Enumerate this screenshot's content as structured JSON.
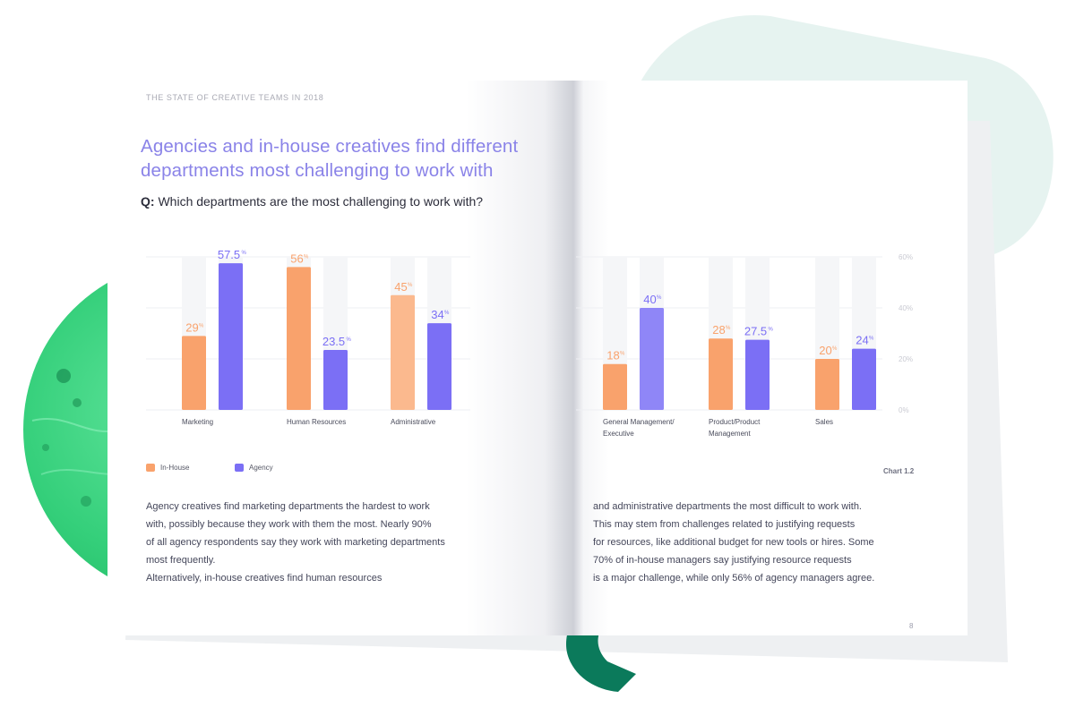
{
  "running_head": "THE STATE OF CREATIVE TEAMS IN 2018",
  "heading_line1": "Agencies and in-house creatives find different",
  "heading_line2": "departments most challenging to work with",
  "question": {
    "prefix": "Q:",
    "text": " Which departments are the most challenging to work with?"
  },
  "chart_data": {
    "type": "bar",
    "categories": [
      "Marketing",
      "Human Resources",
      "Administrative",
      "General Management/ Executive",
      "Product/Product Management",
      "Sales"
    ],
    "category_lines": [
      [
        "Marketing"
      ],
      [
        "Human Resources"
      ],
      [
        "Administrative"
      ],
      [
        "General Management/",
        "Executive"
      ],
      [
        "Product/Product",
        "Management"
      ],
      [
        "Sales"
      ]
    ],
    "series": [
      {
        "name": "In-House",
        "values": [
          29,
          56,
          45,
          18,
          28,
          20
        ],
        "labels": [
          "29",
          "56",
          "45",
          "18",
          "28",
          "20"
        ],
        "color": "#f9a26c"
      },
      {
        "name": "Agency",
        "values": [
          57.5,
          23.5,
          34,
          40,
          27.5,
          24
        ],
        "labels": [
          "57.5",
          "23.5",
          "34",
          "40",
          "27.5",
          "24"
        ],
        "color": "#7b6ff5"
      }
    ],
    "value_suffix": "%",
    "ylim": [
      0,
      60
    ],
    "yticks": [
      "0%",
      "20%",
      "40%",
      "60%"
    ],
    "grid": true,
    "legend_position": "bottom-left"
  },
  "chart_id": "Chart 1.2",
  "body_left": [
    "Agency creatives find marketing departments the hardest to work",
    "with, possibly because they work with them the most. Nearly 90%",
    "of all agency respondents say they work with marketing departments",
    "most frequently.",
    "Alternatively, in-house creatives find human resources"
  ],
  "body_right": [
    "and administrative departments the most difficult to work with.",
    "This may stem from challenges related to justifying requests",
    "for resources, like additional budget for new tools or hires. Some",
    "70% of in-house managers say justifying resource requests",
    "is a major challenge, while only 56% of agency managers agree."
  ],
  "page_number": "8",
  "colors": {
    "heading": "#8a83e8",
    "inhouse": "#f9a26c",
    "agency": "#7b6ff5",
    "accent_green": "#2ed573",
    "dark_green": "#0b7a5b"
  }
}
